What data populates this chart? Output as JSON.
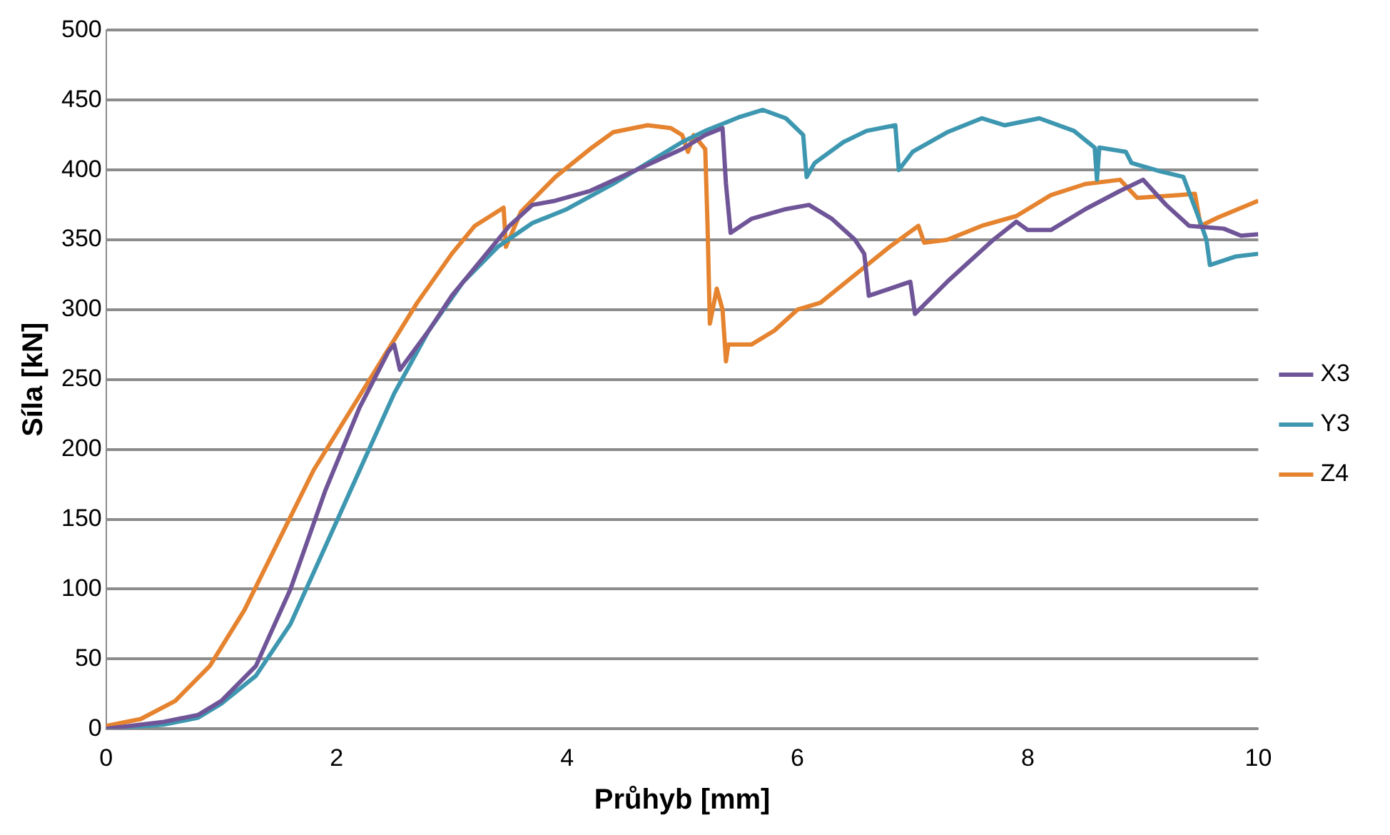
{
  "chart_data": {
    "type": "line",
    "xlabel": "Průhyb [mm]",
    "ylabel": "Síla [kN]",
    "xlim": [
      0,
      10
    ],
    "xticks": [
      0,
      2,
      4,
      6,
      8,
      10
    ],
    "ylim": [
      0,
      500
    ],
    "yticks": [
      0,
      50,
      100,
      150,
      200,
      250,
      300,
      350,
      400,
      450,
      500
    ],
    "grid": "y",
    "legend": "right",
    "marker": "none",
    "line_style": "solid",
    "series": [
      {
        "name": "X3",
        "color": "#6f5597",
        "x": [
          0,
          0.5,
          0.8,
          1.0,
          1.3,
          1.6,
          1.9,
          2.2,
          2.45,
          2.5,
          2.55,
          2.8,
          3.0,
          3.3,
          3.5,
          3.7,
          3.9,
          4.2,
          4.6,
          5.0,
          5.2,
          5.35,
          5.38,
          5.42,
          5.6,
          5.9,
          6.1,
          6.3,
          6.5,
          6.58,
          6.62,
          6.8,
          6.98,
          7.02,
          7.3,
          7.7,
          7.9,
          8.0,
          8.2,
          8.5,
          8.8,
          9.0,
          9.2,
          9.4,
          9.7,
          9.85,
          10
        ],
        "values": [
          0,
          5,
          10,
          20,
          45,
          100,
          170,
          230,
          270,
          275,
          257,
          285,
          310,
          340,
          360,
          375,
          378,
          385,
          400,
          415,
          425,
          430,
          390,
          355,
          365,
          372,
          375,
          365,
          350,
          340,
          310,
          315,
          320,
          297,
          320,
          350,
          363,
          357,
          357,
          372,
          385,
          393,
          375,
          360,
          358,
          353,
          354
        ]
      },
      {
        "name": "Y3",
        "color": "#3e97b0",
        "x": [
          0,
          0.5,
          0.8,
          1.0,
          1.3,
          1.6,
          1.9,
          2.2,
          2.5,
          2.8,
          3.1,
          3.4,
          3.7,
          4.0,
          4.4,
          4.8,
          5.0,
          5.2,
          5.5,
          5.7,
          5.9,
          6.05,
          6.08,
          6.15,
          6.4,
          6.6,
          6.85,
          6.88,
          7.0,
          7.3,
          7.6,
          7.8,
          8.1,
          8.4,
          8.58,
          8.6,
          8.62,
          8.85,
          8.9,
          9.15,
          9.35,
          9.5,
          9.55,
          9.58,
          9.8,
          10
        ],
        "values": [
          0,
          3,
          8,
          18,
          38,
          75,
          130,
          185,
          240,
          285,
          320,
          345,
          362,
          372,
          390,
          410,
          420,
          428,
          438,
          443,
          437,
          425,
          395,
          405,
          420,
          428,
          432,
          400,
          413,
          427,
          437,
          432,
          437,
          428,
          416,
          393,
          416,
          413,
          405,
          399,
          395,
          362,
          350,
          332,
          338,
          340
        ]
      },
      {
        "name": "Z4",
        "color": "#e5832f",
        "x": [
          0,
          0.3,
          0.6,
          0.9,
          1.2,
          1.5,
          1.8,
          2.1,
          2.4,
          2.7,
          3.0,
          3.2,
          3.45,
          3.47,
          3.6,
          3.9,
          4.2,
          4.4,
          4.7,
          4.9,
          5.0,
          5.05,
          5.1,
          5.2,
          5.22,
          5.24,
          5.3,
          5.35,
          5.38,
          5.4,
          5.6,
          5.8,
          6.0,
          6.2,
          6.5,
          6.8,
          7.05,
          7.1,
          7.3,
          7.6,
          7.9,
          8.2,
          8.5,
          8.8,
          8.95,
          9.3,
          9.45,
          9.5,
          9.65,
          10
        ],
        "values": [
          2,
          7,
          20,
          45,
          85,
          135,
          185,
          225,
          265,
          305,
          340,
          360,
          373,
          345,
          370,
          395,
          415,
          427,
          432,
          430,
          425,
          413,
          425,
          415,
          360,
          290,
          315,
          300,
          263,
          275,
          275,
          285,
          300,
          305,
          325,
          345,
          360,
          348,
          350,
          360,
          367,
          382,
          390,
          393,
          380,
          382,
          383,
          360,
          366,
          378
        ]
      }
    ]
  }
}
